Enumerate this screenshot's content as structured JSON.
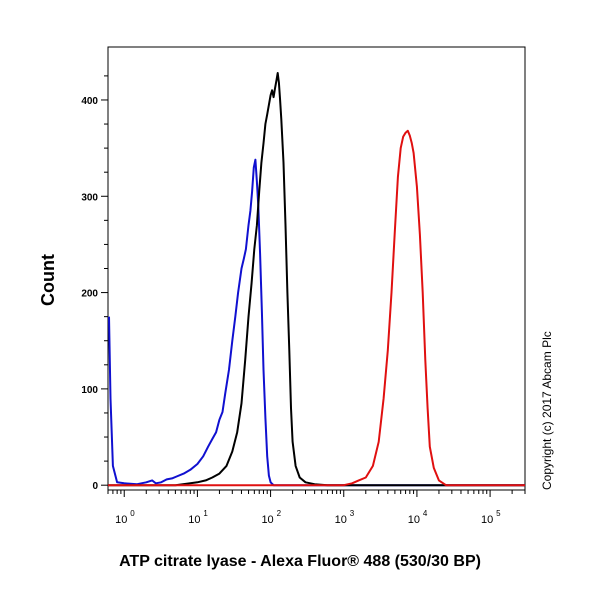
{
  "chart_data": {
    "type": "histogram",
    "title": "",
    "xlabel": "ATP citrate lyase - Alexa Fluor® 488 (530/30 BP)",
    "ylabel": "Count",
    "x_scale": "log",
    "xlim": [
      0.6,
      300000
    ],
    "ylim": [
      -5,
      455
    ],
    "y_ticks": [
      0,
      100,
      200,
      300,
      400
    ],
    "x_ticks": [
      {
        "base": "10",
        "exp": "0",
        "value": 1
      },
      {
        "base": "10",
        "exp": "1",
        "value": 10
      },
      {
        "base": "10",
        "exp": "2",
        "value": 100
      },
      {
        "base": "10",
        "exp": "3",
        "value": 1000
      },
      {
        "base": "10",
        "exp": "4",
        "value": 10000
      },
      {
        "base": "10",
        "exp": "5",
        "value": 100000
      }
    ],
    "grid": false,
    "legend": "none",
    "annotation": "Copyright (c) 2017 Abcam Plc",
    "series": [
      {
        "color": "#1010d0",
        "points": [
          [
            0.62,
            175
          ],
          [
            0.65,
            90
          ],
          [
            0.7,
            20
          ],
          [
            0.8,
            3
          ],
          [
            1.0,
            2
          ],
          [
            1.5,
            1
          ],
          [
            2.0,
            3
          ],
          [
            2.4,
            5
          ],
          [
            2.7,
            2
          ],
          [
            3.2,
            3
          ],
          [
            3.8,
            6
          ],
          [
            4.5,
            7
          ],
          [
            5.2,
            9
          ],
          [
            6.5,
            12
          ],
          [
            8,
            16
          ],
          [
            10,
            22
          ],
          [
            12,
            30
          ],
          [
            14,
            40
          ],
          [
            16,
            48
          ],
          [
            18,
            55
          ],
          [
            20,
            68
          ],
          [
            22,
            76
          ],
          [
            24,
            95
          ],
          [
            27,
            120
          ],
          [
            30,
            150
          ],
          [
            33,
            175
          ],
          [
            36,
            200
          ],
          [
            40,
            225
          ],
          [
            43,
            235
          ],
          [
            46,
            245
          ],
          [
            50,
            270
          ],
          [
            53,
            285
          ],
          [
            56,
            305
          ],
          [
            59,
            330
          ],
          [
            62,
            338
          ],
          [
            65,
            315
          ],
          [
            68,
            290
          ],
          [
            72,
            240
          ],
          [
            76,
            180
          ],
          [
            80,
            120
          ],
          [
            85,
            70
          ],
          [
            90,
            30
          ],
          [
            95,
            10
          ],
          [
            100,
            3
          ],
          [
            110,
            0
          ],
          [
            150,
            0
          ],
          [
            300000,
            0
          ]
        ]
      },
      {
        "color": "#000000",
        "points": [
          [
            0.6,
            0
          ],
          [
            5,
            0
          ],
          [
            8,
            2
          ],
          [
            10,
            3
          ],
          [
            13,
            5
          ],
          [
            16,
            8
          ],
          [
            20,
            12
          ],
          [
            25,
            20
          ],
          [
            30,
            35
          ],
          [
            35,
            55
          ],
          [
            40,
            85
          ],
          [
            45,
            130
          ],
          [
            50,
            175
          ],
          [
            55,
            210
          ],
          [
            60,
            245
          ],
          [
            65,
            270
          ],
          [
            70,
            305
          ],
          [
            75,
            335
          ],
          [
            80,
            355
          ],
          [
            85,
            375
          ],
          [
            90,
            385
          ],
          [
            95,
            395
          ],
          [
            100,
            405
          ],
          [
            105,
            410
          ],
          [
            110,
            403
          ],
          [
            115,
            412
          ],
          [
            120,
            420
          ],
          [
            125,
            428
          ],
          [
            130,
            418
          ],
          [
            135,
            400
          ],
          [
            140,
            380
          ],
          [
            150,
            335
          ],
          [
            160,
            270
          ],
          [
            170,
            200
          ],
          [
            180,
            140
          ],
          [
            190,
            80
          ],
          [
            200,
            45
          ],
          [
            220,
            20
          ],
          [
            250,
            8
          ],
          [
            300,
            3
          ],
          [
            400,
            1
          ],
          [
            600,
            0
          ],
          [
            300000,
            0
          ]
        ]
      },
      {
        "color": "#e01010",
        "points": [
          [
            0.6,
            0
          ],
          [
            1000,
            0
          ],
          [
            1300,
            2
          ],
          [
            1600,
            5
          ],
          [
            2000,
            8
          ],
          [
            2500,
            20
          ],
          [
            3000,
            45
          ],
          [
            3500,
            90
          ],
          [
            4000,
            140
          ],
          [
            4500,
            200
          ],
          [
            5000,
            265
          ],
          [
            5500,
            320
          ],
          [
            6000,
            350
          ],
          [
            6500,
            362
          ],
          [
            7000,
            366
          ],
          [
            7500,
            368
          ],
          [
            8000,
            363
          ],
          [
            8500,
            355
          ],
          [
            9000,
            345
          ],
          [
            10000,
            310
          ],
          [
            11000,
            260
          ],
          [
            12000,
            200
          ],
          [
            13000,
            130
          ],
          [
            14000,
            80
          ],
          [
            15000,
            40
          ],
          [
            17000,
            18
          ],
          [
            20000,
            5
          ],
          [
            25000,
            0
          ],
          [
            300000,
            0
          ]
        ]
      }
    ]
  }
}
